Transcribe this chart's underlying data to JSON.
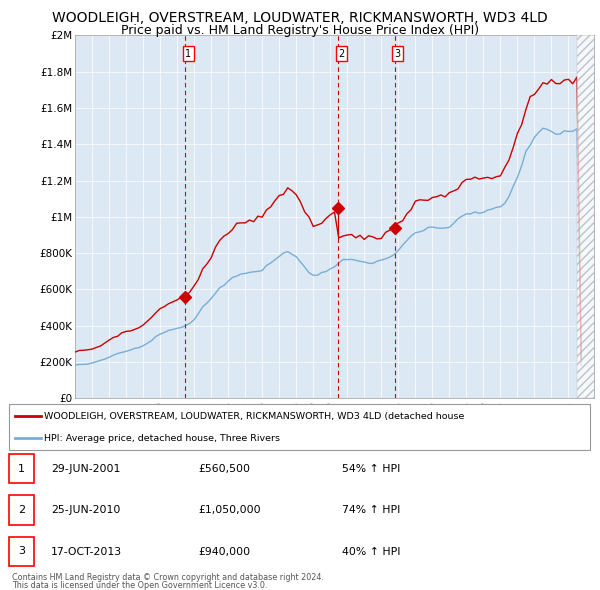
{
  "title": "WOODLEIGH, OVERSTREAM, LOUDWATER, RICKMANSWORTH, WD3 4LD",
  "subtitle": "Price paid vs. HM Land Registry's House Price Index (HPI)",
  "title_fontsize": 10,
  "subtitle_fontsize": 9,
  "ylim": [
    0,
    2000000
  ],
  "yticks": [
    0,
    200000,
    400000,
    600000,
    800000,
    1000000,
    1200000,
    1400000,
    1600000,
    1800000,
    2000000
  ],
  "ytick_labels": [
    "£0",
    "£200K",
    "£400K",
    "£600K",
    "£800K",
    "£1M",
    "£1.2M",
    "£1.4M",
    "£1.6M",
    "£1.8M",
    "£2M"
  ],
  "xlim_start": 1995.0,
  "xlim_end": 2025.5,
  "background_color": "#ffffff",
  "plot_bg_color": "#dce9f5",
  "grid_color": "#ffffff",
  "red_line_color": "#cc0000",
  "blue_line_color": "#7aadd4",
  "dashed_line_color": "#cc0000",
  "hatch_start": 2024.5,
  "transaction_markers": [
    {
      "year": 2001.49,
      "price": 560500,
      "label": "1",
      "line_price": 362000
    },
    {
      "year": 2010.48,
      "price": 1050000,
      "label": "2",
      "line_price": 820000
    },
    {
      "year": 2013.79,
      "price": 940000,
      "label": "3",
      "line_price": 820000
    }
  ],
  "legend_red_label": "WOODLEIGH, OVERSTREAM, LOUDWATER, RICKMANSWORTH, WD3 4LD (detached house",
  "legend_blue_label": "HPI: Average price, detached house, Three Rivers",
  "table_rows": [
    {
      "num": "1",
      "date": "29-JUN-2001",
      "price": "£560,500",
      "change": "54% ↑ HPI"
    },
    {
      "num": "2",
      "date": "25-JUN-2010",
      "price": "£1,050,000",
      "change": "74% ↑ HPI"
    },
    {
      "num": "3",
      "date": "17-OCT-2013",
      "price": "£940,000",
      "change": "40% ↑ HPI"
    }
  ],
  "footer_line1": "Contains HM Land Registry data © Crown copyright and database right 2024.",
  "footer_line2": "This data is licensed under the Open Government Licence v3.0."
}
